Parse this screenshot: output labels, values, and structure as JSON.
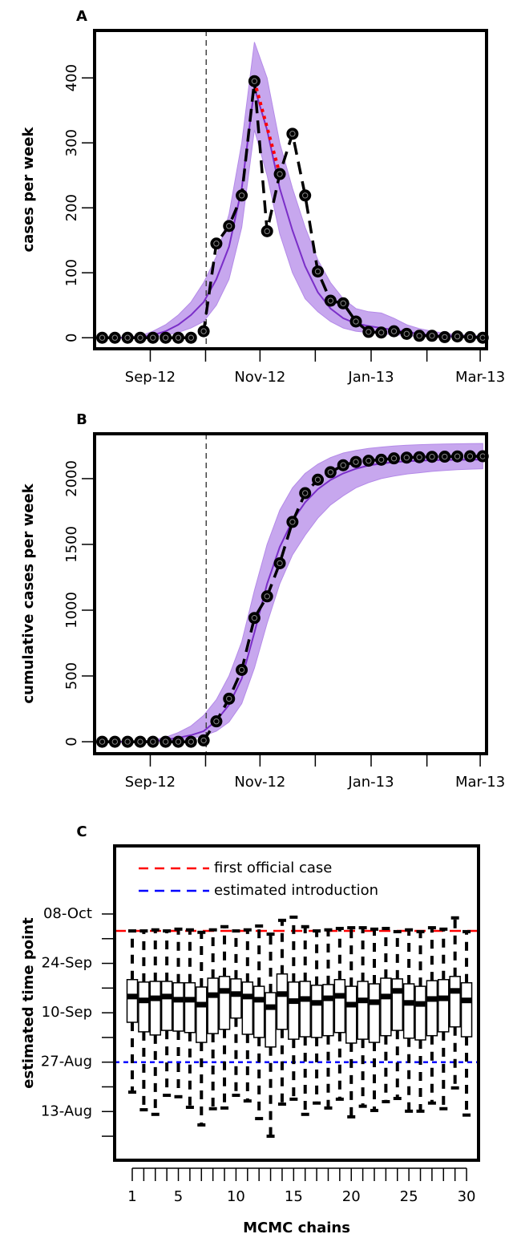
{
  "chart_data": [
    {
      "type": "line",
      "label": "A",
      "ylabel": "cases per week",
      "x": [
        0,
        1,
        2,
        3,
        4,
        5,
        6,
        7,
        8,
        9,
        10,
        11,
        12,
        13,
        14,
        15,
        16,
        17,
        18,
        19,
        20,
        21,
        22,
        23,
        24,
        25,
        26,
        27,
        28,
        29,
        30
      ],
      "observed": {
        "color": "#000000",
        "values": [
          0,
          0,
          0,
          0,
          0,
          0,
          0,
          0,
          10,
          145,
          172,
          219,
          395,
          164,
          252,
          314,
          219,
          102,
          57,
          53,
          25,
          9,
          8,
          10,
          6,
          3,
          3,
          1,
          2,
          1,
          0
        ]
      },
      "median": {
        "color": "#7a2ec8",
        "values": [
          0,
          0,
          0,
          1,
          4,
          10,
          20,
          35,
          55,
          90,
          140,
          230,
          385,
          320,
          230,
          165,
          110,
          70,
          45,
          30,
          22,
          18,
          15,
          12,
          9,
          6,
          4,
          3,
          2,
          1,
          1
        ]
      },
      "band": {
        "color": "#b48ae8",
        "lower": [
          0,
          0,
          0,
          0,
          1,
          4,
          8,
          15,
          25,
          50,
          90,
          170,
          320,
          250,
          160,
          100,
          60,
          40,
          25,
          15,
          10,
          8,
          6,
          5,
          3,
          2,
          1,
          1,
          0,
          0,
          0
        ],
        "upper": [
          0,
          0,
          1,
          3,
          10,
          20,
          35,
          55,
          85,
          125,
          190,
          300,
          455,
          400,
          300,
          230,
          170,
          120,
          85,
          60,
          45,
          40,
          38,
          30,
          20,
          14,
          10,
          7,
          5,
          4,
          3
        ]
      },
      "highlight": {
        "from": 12,
        "to": 14,
        "color": "#ff0000"
      },
      "vline_x": 8.2,
      "xlim": [
        -0.6,
        30.3
      ],
      "xticks": [
        {
          "value": 3.79,
          "label": "Sep-12"
        },
        {
          "value": 12.44,
          "label": "Nov-12"
        },
        {
          "value": 21.2,
          "label": "Jan-13"
        },
        {
          "value": 29.8,
          "label": "Mar-13"
        }
      ],
      "xminorticks": [
        8.15,
        16.8,
        25.6
      ],
      "ylim": [
        -17,
        473
      ],
      "yticks": [
        0,
        100,
        200,
        300,
        400
      ]
    },
    {
      "type": "line",
      "label": "B",
      "ylabel": "cumulative cases per week",
      "x": [
        0,
        1,
        2,
        3,
        4,
        5,
        6,
        7,
        8,
        9,
        10,
        11,
        12,
        13,
        14,
        15,
        16,
        17,
        18,
        19,
        20,
        21,
        22,
        23,
        24,
        25,
        26,
        27,
        28,
        29,
        30
      ],
      "observed": {
        "color": "#000000",
        "values": [
          0,
          0,
          0,
          0,
          0,
          0,
          0,
          0,
          10,
          155,
          327,
          546,
          941,
          1105,
          1357,
          1671,
          1890,
          1992,
          2049,
          2102,
          2127,
          2136,
          2144,
          2154,
          2160,
          2163,
          2166,
          2167,
          2169,
          2170,
          2170
        ]
      },
      "median": {
        "color": "#7a2ec8",
        "values": [
          0,
          0,
          0,
          1,
          5,
          15,
          30,
          50,
          80,
          160,
          280,
          480,
          830,
          1200,
          1480,
          1680,
          1820,
          1920,
          1990,
          2040,
          2075,
          2100,
          2115,
          2125,
          2132,
          2137,
          2140,
          2142,
          2143,
          2144,
          2145
        ]
      },
      "band": {
        "color": "#b48ae8",
        "lower": [
          0,
          0,
          0,
          0,
          1,
          5,
          12,
          25,
          45,
          80,
          150,
          290,
          560,
          900,
          1200,
          1420,
          1570,
          1700,
          1800,
          1870,
          1930,
          1970,
          2000,
          2020,
          2035,
          2045,
          2055,
          2062,
          2068,
          2072,
          2075
        ],
        "upper": [
          0,
          0,
          1,
          4,
          14,
          34,
          70,
          120,
          200,
          320,
          500,
          760,
          1150,
          1500,
          1760,
          1930,
          2040,
          2110,
          2160,
          2195,
          2215,
          2230,
          2240,
          2248,
          2254,
          2258,
          2261,
          2263,
          2265,
          2266,
          2267
        ]
      },
      "vline_x": 8.2,
      "xlim": [
        -0.6,
        30.3
      ],
      "xticks": [
        {
          "value": 3.79,
          "label": "Sep-12"
        },
        {
          "value": 12.44,
          "label": "Nov-12"
        },
        {
          "value": 21.2,
          "label": "Jan-13"
        },
        {
          "value": 29.8,
          "label": "Mar-13"
        }
      ],
      "xminorticks": [
        8.15,
        16.8,
        25.6
      ],
      "ylim": [
        -91,
        2341
      ],
      "yticks": [
        0,
        500,
        1000,
        1500,
        2000
      ]
    },
    {
      "type": "boxplot",
      "label": "C",
      "ylabel": "estimated time point",
      "xlabel": "MCMC chains",
      "x": [
        1,
        2,
        3,
        4,
        5,
        6,
        7,
        8,
        9,
        10,
        11,
        12,
        13,
        14,
        15,
        16,
        17,
        18,
        19,
        20,
        21,
        22,
        23,
        24,
        25,
        26,
        27,
        28,
        29,
        30
      ],
      "whislo": [
        231.5,
        226.5,
        225.2,
        230.6,
        230.2,
        227.2,
        222.2,
        226.8,
        227.0,
        230.6,
        229.0,
        224.0,
        219.0,
        228.1,
        229.5,
        225.2,
        228.4,
        227.0,
        229.5,
        224.5,
        227.5,
        226.3,
        228.8,
        229.7,
        226.1,
        226.1,
        228.4,
        226.8,
        232.7,
        225.0
      ],
      "q1": [
        251.3,
        248.6,
        247.7,
        249.0,
        248.8,
        248.4,
        245.6,
        248.1,
        249.3,
        252.5,
        247.9,
        247.0,
        244.3,
        249.3,
        246.5,
        247.2,
        247.0,
        247.5,
        248.4,
        245.4,
        246.5,
        245.6,
        247.5,
        249.0,
        246.8,
        246.3,
        247.5,
        248.6,
        250.0,
        247.2
      ],
      "med": [
        258.6,
        257.5,
        258.1,
        258.6,
        257.7,
        257.7,
        256.3,
        259.0,
        260.2,
        259.3,
        258.6,
        257.7,
        255.6,
        259.3,
        257.3,
        257.9,
        256.8,
        258.1,
        258.8,
        256.3,
        257.5,
        257.0,
        258.6,
        260.2,
        256.8,
        256.5,
        257.9,
        258.1,
        260.2,
        257.5
      ],
      "q3": [
        263.4,
        262.7,
        262.9,
        262.9,
        262.5,
        262.5,
        261.3,
        263.8,
        264.3,
        263.6,
        262.7,
        261.5,
        259.7,
        265.0,
        262.7,
        262.9,
        261.8,
        262.0,
        263.4,
        261.5,
        262.9,
        262.2,
        263.8,
        263.6,
        262.2,
        261.5,
        263.1,
        263.4,
        264.3,
        262.5
      ],
      "whishi": [
        277.2,
        277.2,
        277.5,
        277.2,
        277.7,
        277.5,
        276.8,
        277.5,
        278.4,
        277.2,
        277.5,
        278.6,
        276.3,
        280.2,
        281.1,
        278.4,
        277.2,
        277.5,
        277.9,
        278.1,
        278.1,
        277.7,
        277.9,
        277.0,
        277.5,
        277.0,
        278.1,
        277.7,
        280.9,
        277.0
      ],
      "hlines": [
        {
          "name": "first official case",
          "color": "#ff0000",
          "value": 277.2
        },
        {
          "name": "estimated introduction",
          "color": "#0000ff",
          "value": 240
        }
      ],
      "legend": "top-left",
      "xlim": [
        -0.53,
        31.04
      ],
      "xticks": [
        1,
        5,
        10,
        15,
        20,
        25,
        30
      ],
      "xminorticks": [
        2,
        3,
        4,
        6,
        7,
        8,
        9,
        11,
        12,
        13,
        14,
        16,
        17,
        18,
        19,
        21,
        22,
        23,
        24,
        26,
        27,
        28,
        29
      ],
      "ylim": [
        212.2,
        301.3
      ],
      "yticks": [
        {
          "value": 226,
          "label": "13-Aug"
        },
        {
          "value": 240,
          "label": "27-Aug"
        },
        {
          "value": 254,
          "label": "10-Sep"
        },
        {
          "value": 268,
          "label": "24-Sep"
        },
        {
          "value": 282,
          "label": "08-Oct"
        }
      ],
      "yminorticks": [
        219,
        233,
        247,
        261,
        275
      ]
    }
  ]
}
